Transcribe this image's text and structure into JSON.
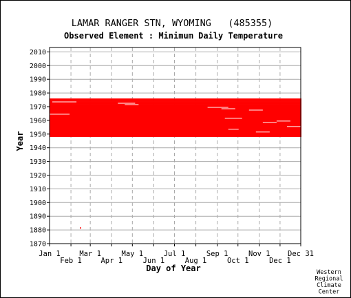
{
  "title": "LAMAR RANGER STN, WYOMING   (485355)",
  "subtitle": "Observed Element : Minimum Daily Temperature",
  "credit": [
    "Western",
    "Regional",
    "Climate",
    "Center"
  ],
  "colors": {
    "data": "#ff0000",
    "grid": "#aaaaaa",
    "frame": "#000000",
    "background": "#ffffff"
  },
  "chart_data": {
    "type": "heatmap",
    "title": "LAMAR RANGER STN, WYOMING   (485355)",
    "subtitle": "Observed Element : Minimum Daily Temperature",
    "xlabel": "Day of Year",
    "ylabel": "Year",
    "ylim": [
      1870,
      2012
    ],
    "xlim": [
      1,
      365
    ],
    "grid": true,
    "x_ticks_upper": [
      {
        "label": "Jan 1",
        "day": 1
      },
      {
        "label": "Mar 1",
        "day": 60
      },
      {
        "label": "May 1",
        "day": 121
      },
      {
        "label": "Jul 1",
        "day": 182
      },
      {
        "label": "Sep 1",
        "day": 244
      },
      {
        "label": "Nov 1",
        "day": 305
      },
      {
        "label": "Dec 31",
        "day": 365
      }
    ],
    "x_ticks_lower": [
      {
        "label": "Feb 1",
        "day": 32
      },
      {
        "label": "Apr 1",
        "day": 91
      },
      {
        "label": "Jun 1",
        "day": 152
      },
      {
        "label": "Aug 1",
        "day": 213
      },
      {
        "label": "Oct 1",
        "day": 274
      },
      {
        "label": "Dec 1",
        "day": 335
      }
    ],
    "y_ticks": [
      2010,
      2000,
      1990,
      1980,
      1970,
      1960,
      1950,
      1940,
      1930,
      1920,
      1910,
      1900,
      1890,
      1880,
      1870
    ],
    "series": [
      {
        "year_start": 1948,
        "year_end": 1975,
        "day_start": 1,
        "day_end": 365,
        "status": "observed",
        "note_gaps": "scattered missing days"
      },
      {
        "year_start": 1881,
        "year_end": 1881,
        "day_start": 45,
        "day_end": 45,
        "status": "observed"
      }
    ],
    "gaps": [
      {
        "year": 1973,
        "day_start": 5,
        "day_end": 40
      },
      {
        "year": 1972,
        "day_start": 100,
        "day_end": 125
      },
      {
        "year": 1971,
        "day_start": 110,
        "day_end": 130
      },
      {
        "year": 1969,
        "day_start": 230,
        "day_end": 260
      },
      {
        "year": 1968,
        "day_start": 250,
        "day_end": 270
      },
      {
        "year": 1967,
        "day_start": 290,
        "day_end": 310
      },
      {
        "year": 1964,
        "day_start": 1,
        "day_end": 30
      },
      {
        "year": 1961,
        "day_start": 255,
        "day_end": 280
      },
      {
        "year": 1959,
        "day_start": 330,
        "day_end": 350
      },
      {
        "year": 1958,
        "day_start": 310,
        "day_end": 330
      },
      {
        "year": 1955,
        "day_start": 345,
        "day_end": 365
      },
      {
        "year": 1953,
        "day_start": 260,
        "day_end": 275
      },
      {
        "year": 1951,
        "day_start": 300,
        "day_end": 320
      }
    ]
  }
}
